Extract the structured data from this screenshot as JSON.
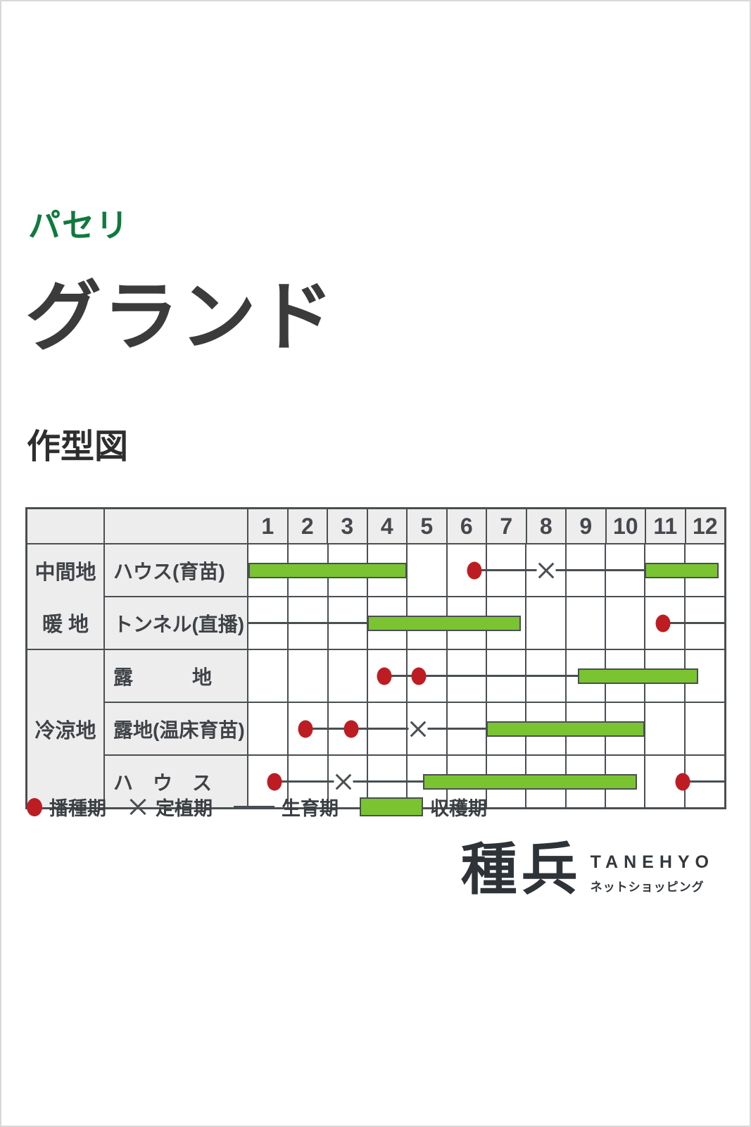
{
  "header": {
    "category": "パセリ",
    "title": "グランド",
    "section": "作型図"
  },
  "colors": {
    "category_green": "#0e7a3d",
    "harvest_bar_green": "#7ac431",
    "sowing_dot_red": "#bd1d22",
    "grid_gray": "#4a4f52",
    "label_cell_gray": "#ededed",
    "text_dark": "#3b3b3b"
  },
  "chart_data": {
    "type": "gantt-calendar",
    "title": "作型図",
    "x_axis": {
      "unit": "month",
      "ticks": [
        "1",
        "2",
        "3",
        "4",
        "5",
        "6",
        "7",
        "8",
        "9",
        "10",
        "11",
        "12"
      ],
      "range": [
        0,
        12
      ]
    },
    "mark_meaning": {
      "dot": "播種期",
      "cross": "定植期",
      "line": "生育期",
      "bar": "収穫期"
    },
    "groups": [
      {
        "region_lines": [
          "中間地",
          "暖 地"
        ],
        "rows": [
          {
            "label": "ハウス(育苗)",
            "marks": [
              {
                "t": "bar",
                "a": 0,
                "b": 4.0
              },
              {
                "t": "line",
                "a": 5.7,
                "b": 10.0
              },
              {
                "t": "dot",
                "a": 5.7
              },
              {
                "t": "cross",
                "a": 7.5
              },
              {
                "t": "bar",
                "a": 10.0,
                "b": 11.85
              }
            ]
          },
          {
            "label": "トンネル(直播)",
            "marks": [
              {
                "t": "line",
                "a": 0,
                "b": 3.0
              },
              {
                "t": "bar",
                "a": 3.0,
                "b": 6.87
              },
              {
                "t": "dot",
                "a": 10.45
              },
              {
                "t": "line",
                "a": 10.45,
                "b": 12
              }
            ]
          }
        ]
      },
      {
        "region_lines": [
          "冷涼地"
        ],
        "rows": [
          {
            "label": "露　　　地",
            "marks": [
              {
                "t": "line",
                "a": 3.43,
                "b": 8.3
              },
              {
                "t": "dot",
                "a": 3.43
              },
              {
                "t": "dot",
                "a": 4.3
              },
              {
                "t": "bar",
                "a": 8.3,
                "b": 11.35
              }
            ]
          },
          {
            "label": "露地(温床育苗)",
            "marks": [
              {
                "t": "line",
                "a": 1.43,
                "b": 6.0
              },
              {
                "t": "dot",
                "a": 1.43
              },
              {
                "t": "dot",
                "a": 2.6
              },
              {
                "t": "cross",
                "a": 4.28
              },
              {
                "t": "bar",
                "a": 6.0,
                "b": 10.0
              }
            ]
          },
          {
            "label": "ハ　ウ　ス",
            "marks": [
              {
                "t": "line",
                "a": 0.65,
                "b": 4.4
              },
              {
                "t": "dot",
                "a": 0.65
              },
              {
                "t": "cross",
                "a": 2.4
              },
              {
                "t": "bar",
                "a": 4.4,
                "b": 9.8
              },
              {
                "t": "dot",
                "a": 10.95
              },
              {
                "t": "line",
                "a": 10.95,
                "b": 12
              }
            ]
          }
        ]
      }
    ]
  },
  "legend": {
    "items": [
      {
        "symbol": "dot",
        "label": "播種期"
      },
      {
        "symbol": "cross",
        "label": "定植期"
      },
      {
        "symbol": "line",
        "label": "生育期"
      },
      {
        "symbol": "bar",
        "label": "収穫期"
      }
    ]
  },
  "logo": {
    "name": "種兵",
    "roman": "TANEHYO",
    "subtitle": "ネットショッピング"
  }
}
